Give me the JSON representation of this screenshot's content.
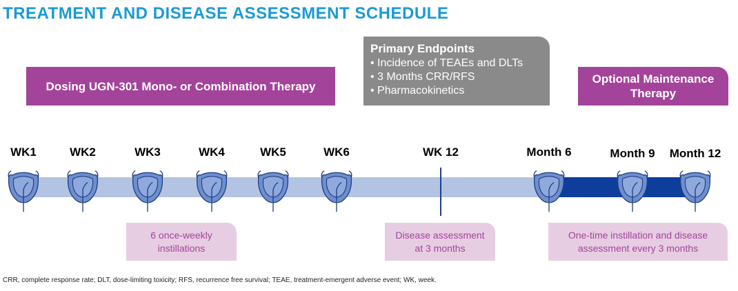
{
  "title": "TREATMENT AND DISEASE ASSESSMENT SCHEDULE",
  "dosing_box": "Dosing UGN-301 Mono- or Combination Therapy",
  "primary_endpoints": {
    "title": "Primary Endpoints",
    "items": [
      "• Incidence of TEAEs and DLTs",
      "• 3 Months CRR/RFS",
      "• Pharmacokinetics"
    ]
  },
  "maintenance_box": {
    "line1": "Optional Maintenance",
    "line2": "Therapy"
  },
  "timepoints": [
    "WK1",
    "WK2",
    "WK3",
    "WK4",
    "WK5",
    "WK6",
    "WK 12",
    "Month 6",
    "Month 9",
    "Month 12"
  ],
  "notes": {
    "weekly": {
      "line1": "6 once-weekly",
      "line2": "instillations"
    },
    "assessment": {
      "line1": "Disease assessment",
      "line2": "at 3 months"
    },
    "maintenance": {
      "line1": "One-time instillation and disease",
      "line2": "assessment every 3 months"
    }
  },
  "footnote": "CRR, complete response rate; DLT, dose-limiting toxicity; RFS, recurrence free survival; TEAE, treatment-emergent adverse event; WK, week.",
  "colors": {
    "title": "#1a9ad6",
    "magenta": "#a3449a",
    "grey": "#8a8a8a",
    "timeline_light": "#b3c3e2",
    "timeline_dark": "#0d3e9c",
    "note_bg": "#e7cde2"
  }
}
